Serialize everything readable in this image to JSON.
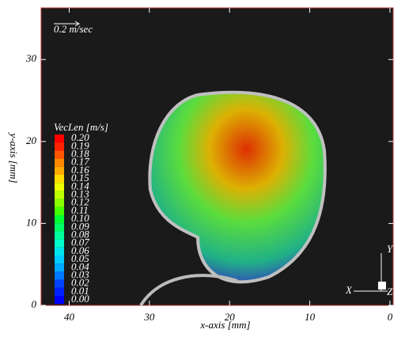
{
  "chart_data": {
    "type": "vector",
    "x_label": "x-axis [mm]",
    "y_label": "y-axis [mm]",
    "xlim": [
      43.5,
      -0.4
    ],
    "ylim": [
      0,
      36.3
    ],
    "xticks": [
      40,
      30,
      20,
      10,
      0
    ],
    "yticks": [
      0,
      10,
      20,
      30
    ],
    "reference_vector": "0.2 m/sec",
    "colorbar": {
      "title": "VecLen [m/s]",
      "ticks": [
        {
          "value": 0.2,
          "label": "0.20"
        },
        {
          "value": 0.19,
          "label": "0.19"
        },
        {
          "value": 0.18,
          "label": "0.18"
        },
        {
          "value": 0.17,
          "label": "0.17"
        },
        {
          "value": 0.16,
          "label": "0.16"
        },
        {
          "value": 0.15,
          "label": "0.15"
        },
        {
          "value": 0.14,
          "label": "0.14"
        },
        {
          "value": 0.13,
          "label": "0.13"
        },
        {
          "value": 0.12,
          "label": "0.12"
        },
        {
          "value": 0.11,
          "label": "0.11"
        },
        {
          "value": 0.1,
          "label": "0.10"
        },
        {
          "value": 0.09,
          "label": "0.09"
        },
        {
          "value": 0.08,
          "label": "0.08"
        },
        {
          "value": 0.07,
          "label": "0.07"
        },
        {
          "value": 0.06,
          "label": "0.06"
        },
        {
          "value": 0.05,
          "label": "0.05"
        },
        {
          "value": 0.04,
          "label": "0.04"
        },
        {
          "value": 0.03,
          "label": "0.03"
        },
        {
          "value": 0.02,
          "label": "0.02"
        },
        {
          "value": 0.01,
          "label": "0.01"
        },
        {
          "value": 0,
          "label": "0.00"
        }
      ],
      "colors": [
        "#ff0000",
        "#ff2200",
        "#ff5500",
        "#ff8800",
        "#ffaa00",
        "#ffdd00",
        "#eeff00",
        "#bbff00",
        "#88ff00",
        "#44ff00",
        "#00ff33",
        "#00ff66",
        "#00ff99",
        "#00ffcc",
        "#00e5ee",
        "#00ccff",
        "#00aaff",
        "#0077ff",
        "#0044ff",
        "#0022ff",
        "#0000ff"
      ]
    },
    "axis_icon": [
      "X",
      "Y",
      "Z"
    ]
  }
}
